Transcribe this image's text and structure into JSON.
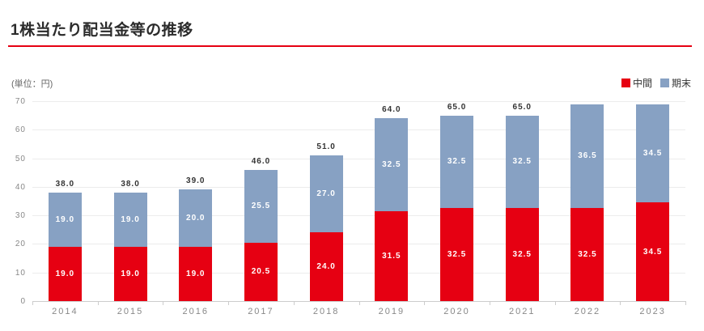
{
  "page": {
    "title": "1株当たり配当金等の推移",
    "unit_label": "(単位：円)",
    "accent_color": "#e60012"
  },
  "legend": [
    {
      "label": "中間",
      "color": "#e60012"
    },
    {
      "label": "期末",
      "color": "#87a1c3"
    }
  ],
  "chart_data": {
    "type": "bar",
    "stacked": true,
    "title": "1株当たり配当金等の推移",
    "unit": "円",
    "categories": [
      "2014",
      "2015",
      "2016",
      "2017",
      "2018",
      "2019",
      "2020",
      "2021",
      "2022",
      "2023"
    ],
    "series": [
      {
        "name": "中間",
        "color": "#e60012",
        "values": [
          19.0,
          19.0,
          19.0,
          20.5,
          24.0,
          31.5,
          32.5,
          32.5,
          32.5,
          34.5
        ]
      },
      {
        "name": "期末",
        "color": "#87a1c3",
        "values": [
          19.0,
          19.0,
          20.0,
          25.5,
          27.0,
          32.5,
          32.5,
          32.5,
          36.5,
          34.5
        ]
      }
    ],
    "totals": [
      38.0,
      38.0,
      39.0,
      46.0,
      51.0,
      64.0,
      65.0,
      65.0,
      69.0,
      69.0
    ],
    "total_labels_shown": [
      true,
      true,
      true,
      true,
      true,
      true,
      true,
      true,
      false,
      false
    ],
    "ylim": [
      0,
      70
    ],
    "yticks": [
      0,
      10,
      20,
      30,
      40,
      50,
      60,
      70
    ],
    "grid": true,
    "legend_position": "top-right"
  }
}
